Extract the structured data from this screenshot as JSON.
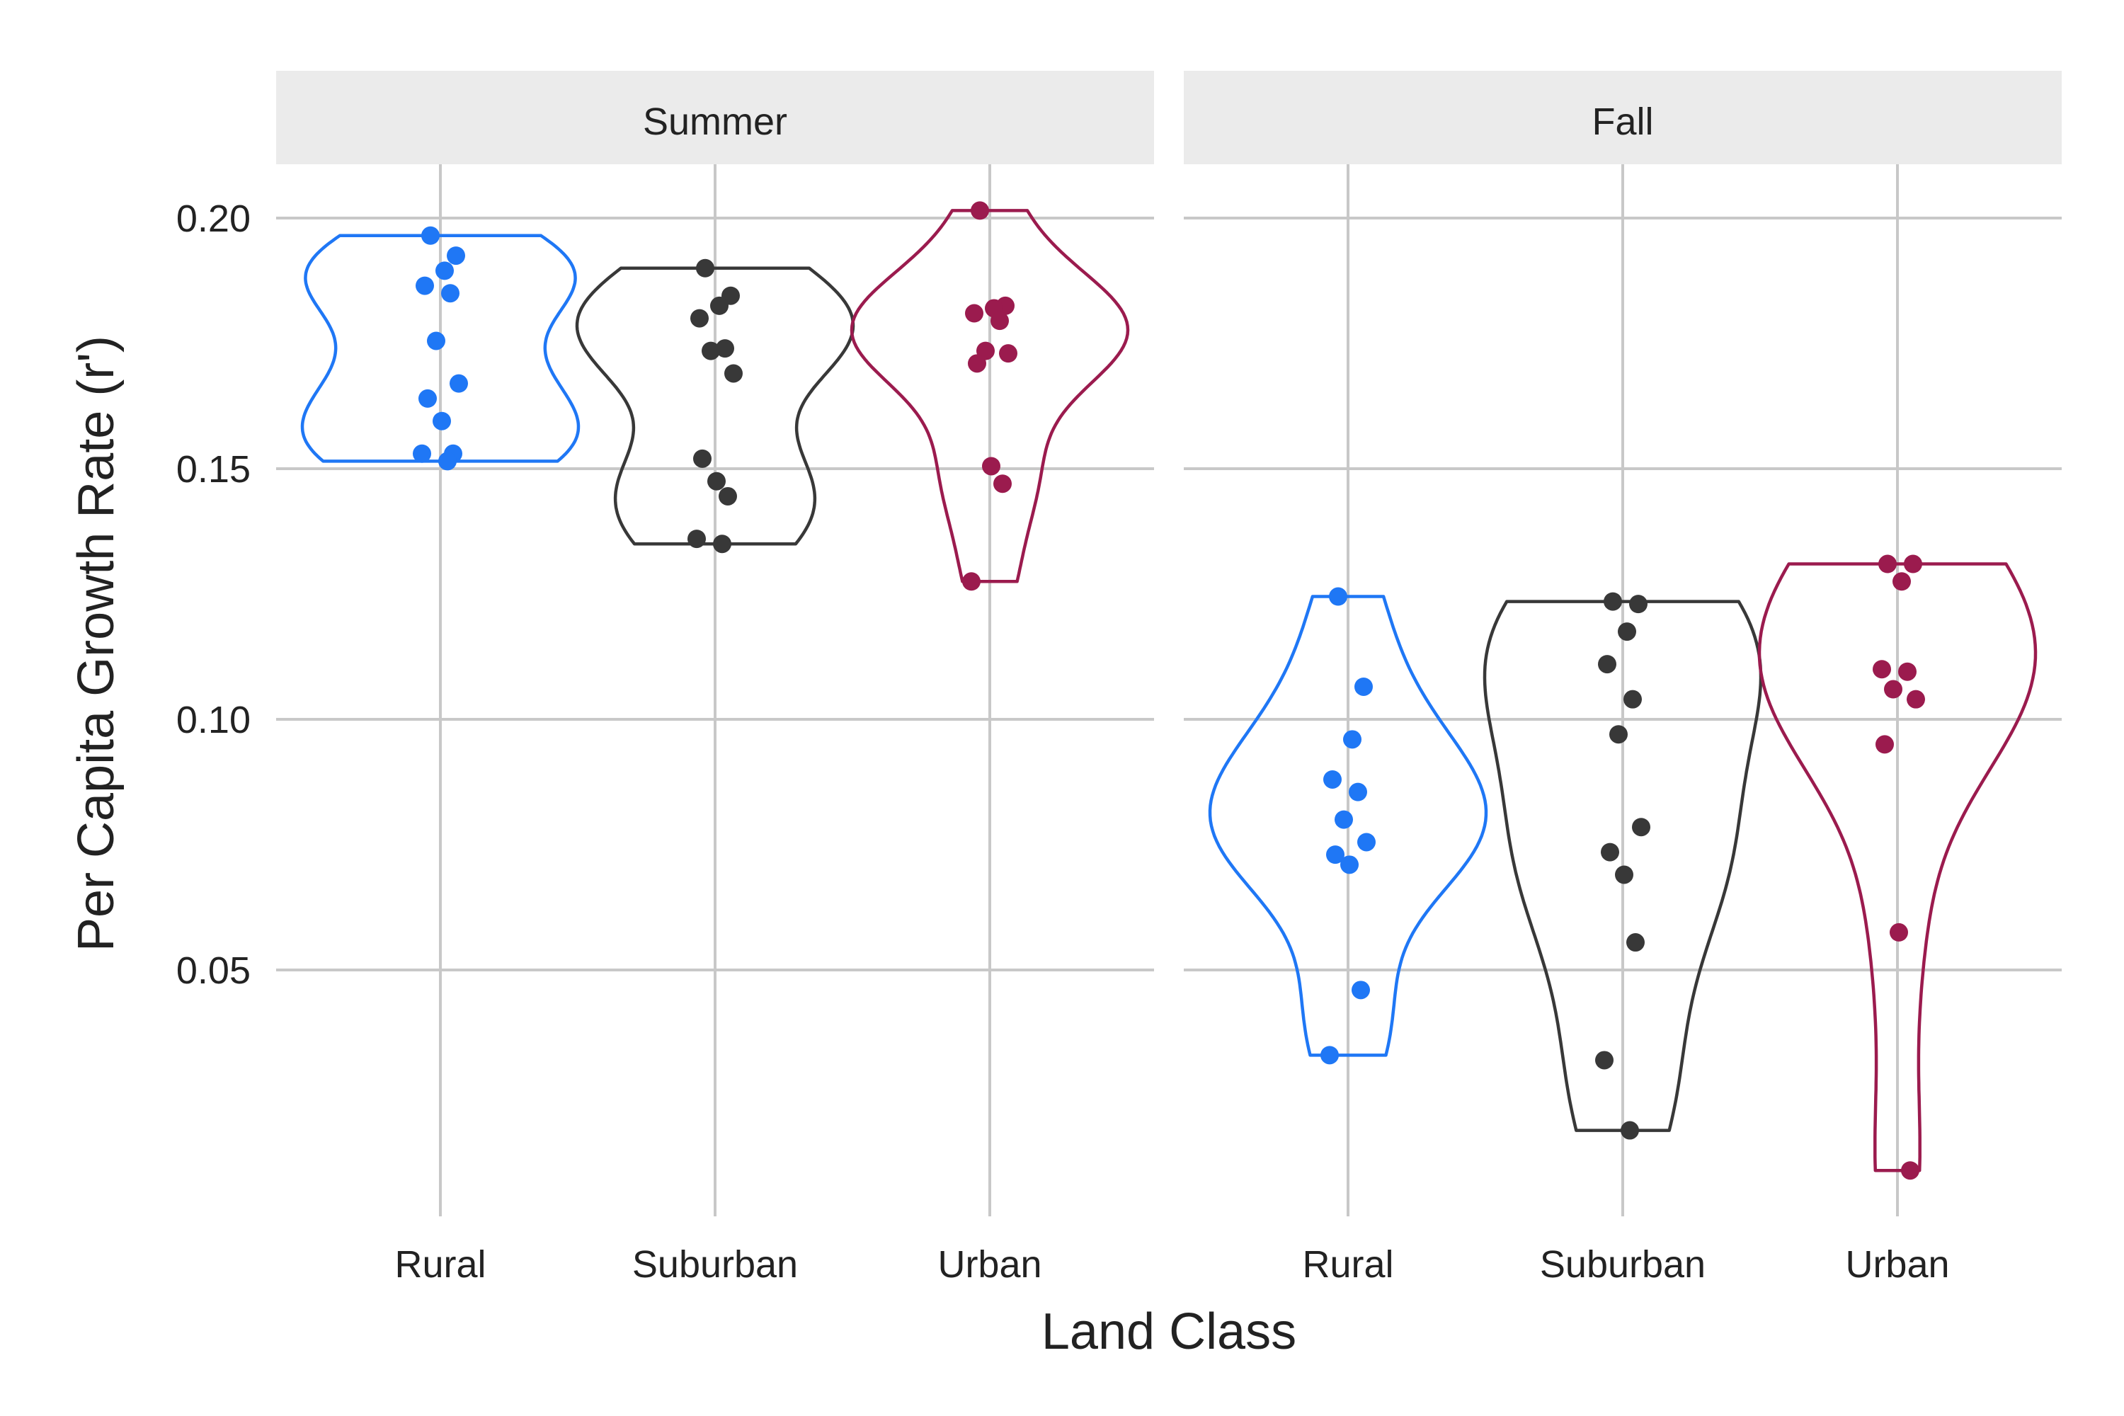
{
  "chart_data": {
    "type": "violin",
    "xlabel": "Land Class",
    "ylabel": "Per Capita Growth Rate (r')",
    "ylim": [
      0.0,
      0.21
    ],
    "yticks": [
      0.05,
      0.1,
      0.15,
      0.2
    ],
    "ytick_labels": [
      "0.05",
      "0.10",
      "0.15",
      "0.20"
    ],
    "grid": true,
    "categories": [
      "Rural",
      "Suburban",
      "Urban"
    ],
    "colors": {
      "Rural": "#1f77f5",
      "Suburban": "#383838",
      "Urban": "#9b1b4e"
    },
    "panels": [
      {
        "facet": "Summer",
        "groups": [
          {
            "category": "Rural",
            "points": [
              0.1965,
              0.1925,
              0.1895,
              0.1865,
              0.185,
              0.1755,
              0.167,
              0.164,
              0.1595,
              0.153,
              0.153,
              0.1515
            ]
          },
          {
            "category": "Suburban",
            "points": [
              0.19,
              0.1845,
              0.1825,
              0.18,
              0.174,
              0.1735,
              0.169,
              0.152,
              0.1475,
              0.1445,
              0.136,
              0.135
            ]
          },
          {
            "category": "Urban",
            "points": [
              0.2015,
              0.1825,
              0.182,
              0.181,
              0.1795,
              0.1735,
              0.173,
              0.171,
              0.1505,
              0.147,
              0.1275
            ]
          }
        ]
      },
      {
        "facet": "Fall",
        "groups": [
          {
            "category": "Rural",
            "points": [
              0.1245,
              0.1065,
              0.096,
              0.088,
              0.0855,
              0.08,
              0.0755,
              0.073,
              0.071,
              0.046,
              0.033
            ]
          },
          {
            "category": "Suburban",
            "points": [
              0.1235,
              0.123,
              0.1175,
              0.111,
              0.104,
              0.097,
              0.0785,
              0.0735,
              0.069,
              0.0555,
              0.032,
              0.018
            ]
          },
          {
            "category": "Urban",
            "points": [
              0.131,
              0.131,
              0.1275,
              0.11,
              0.1095,
              0.106,
              0.104,
              0.095,
              0.0575,
              0.01
            ]
          }
        ]
      }
    ]
  }
}
